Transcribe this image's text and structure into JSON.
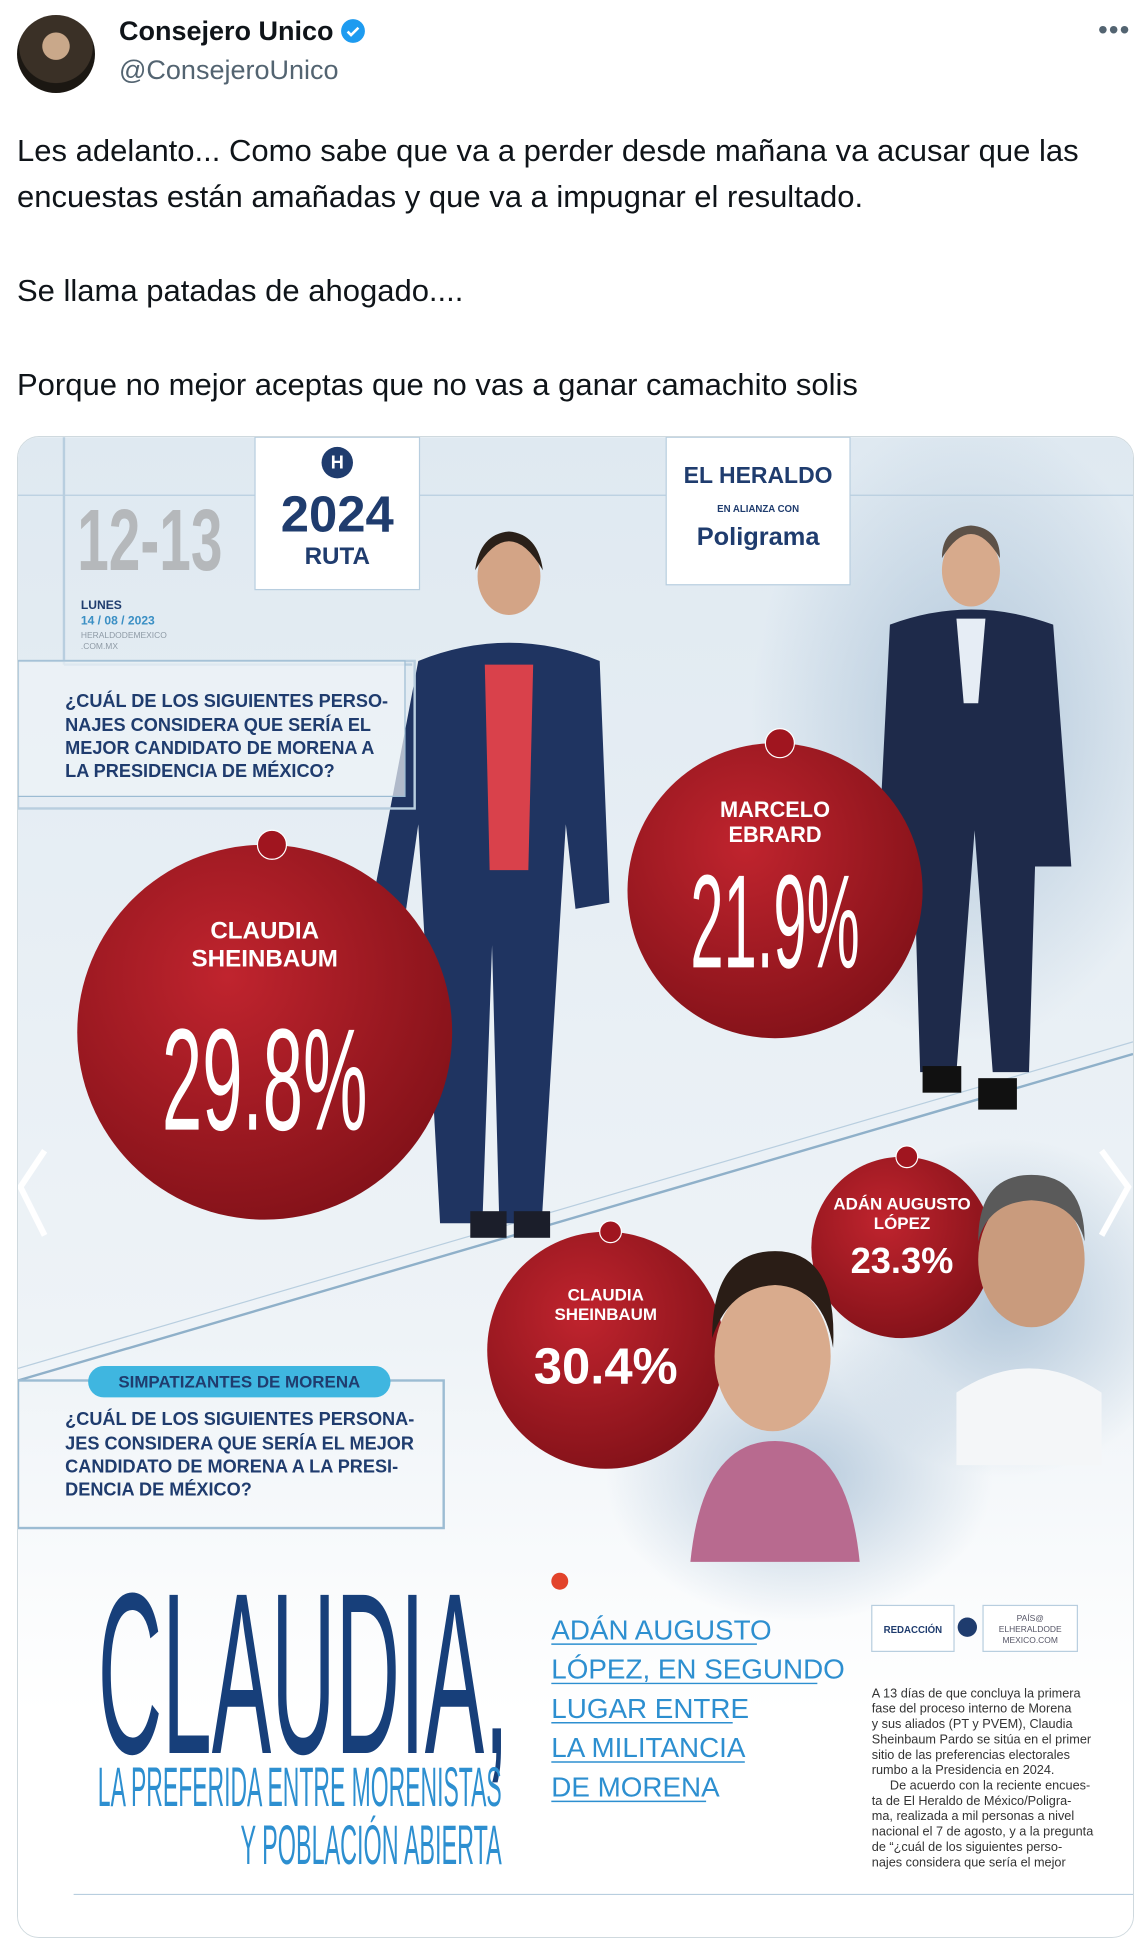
{
  "author": {
    "name": "Consejero Unico",
    "handle": "@ConsejeroUnico"
  },
  "tweet": {
    "paragraphs": [
      "Les adelanto... Como sabe que va a perder desde mañana va acusar que las encuestas están amañadas y que va a impugnar el resultado.",
      "Se llama patadas de ahogado....",
      "Porque no mejor aceptas que no vas a ganar camachito solis"
    ]
  },
  "image": {
    "pages": "12-13",
    "day": "LUNES",
    "date": "14 / 08 / 2023",
    "site": [
      "HERALDODEMEXICO",
      ".COM.MX"
    ],
    "ruta_logo": {
      "letter": "H",
      "year": "2024",
      "word": "RUTA"
    },
    "heraldo_logo": {
      "name": "EL HERALDO",
      "tagline": "EN ALIANZA CON",
      "partner": "Poligrama"
    },
    "question_1": [
      "¿CUÁL DE LOS SIGUIENTES PERSO-",
      "NAJES CONSIDERA QUE SERÍA EL",
      "MEJOR CANDIDATO DE MORENA A",
      "LA PRESIDENCIA DE MÉXICO?"
    ],
    "results": [
      {
        "name": [
          "CLAUDIA",
          "SHEINBAUM"
        ],
        "value": "29.8%"
      },
      {
        "name": [
          "MARCELO",
          "EBRARD"
        ],
        "value": "21.9%"
      },
      {
        "name": [
          "ADÁN AUGUSTO",
          "LÓPEZ"
        ],
        "value": "23.3%"
      },
      {
        "name": [
          "CLAUDIA",
          "SHEINBAUM"
        ],
        "value": "30.4%"
      }
    ],
    "pill": "SIMPATIZANTES DE MORENA",
    "question_2": [
      "¿CUÁL DE LOS SIGUIENTES PERSONA-",
      "JES CONSIDERA QUE SERÍA EL MEJOR",
      "CANDIDATO DE MORENA A LA PRESI-",
      "DENCIA DE MÉXICO?"
    ],
    "headline": {
      "main": "CLAUDIA,",
      "sub": [
        "LA PREFERIDA ENTRE MORENISTAS",
        "Y POBLACIÓN ABIERTA"
      ]
    },
    "subhead": [
      "ADÁN AUGUSTO",
      "LÓPEZ, EN SEGUNDO",
      "LUGAR ENTRE",
      "LA MILITANCIA",
      "DE MORENA"
    ],
    "byline": {
      "author": "REDACCIÓN",
      "contact": [
        "PAÍS@",
        "ELHERALDODE",
        "MEXICO.COM"
      ]
    },
    "body": [
      "A 13 días de que concluya la primera",
      "fase del proceso interno de Morena",
      "y sus aliados (PT y PVEM), Claudia",
      "Sheinbaum Pardo se sitúa en el primer",
      "sitio de las preferencias electorales",
      "rumbo a la Presidencia en 2024.",
      "De acuerdo con la reciente encues-",
      "ta de El Heraldo de México/Poligra-",
      "ma, realizada a mil personas a nivel",
      "nacional el 7 de agosto, y a la pregunta",
      "de “¿cuál de los siguientes perso-",
      "najes considera que sería el mejor"
    ]
  }
}
